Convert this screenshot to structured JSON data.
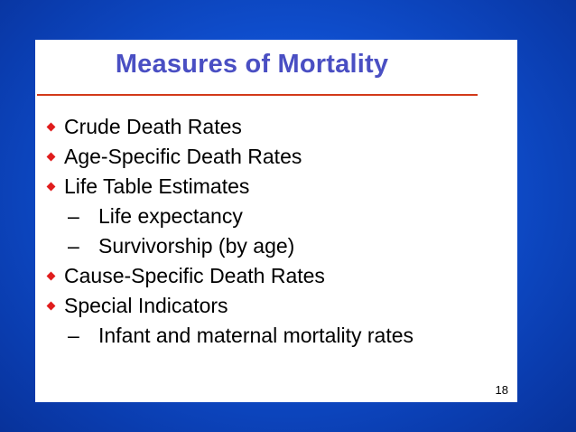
{
  "slide": {
    "title": "Measures of Mortality",
    "items": [
      {
        "level": 1,
        "text": "Crude Death Rates"
      },
      {
        "level": 1,
        "text": "Age-Specific Death Rates"
      },
      {
        "level": 1,
        "text": "Life Table Estimates"
      },
      {
        "level": 2,
        "dash": "–",
        "text": "Life expectancy"
      },
      {
        "level": 2,
        "dash": "–",
        "text": "Survivorship (by age)"
      },
      {
        "level": 1,
        "text": "Cause-Specific Death Rates"
      },
      {
        "level": 1,
        "text": "Special Indicators"
      },
      {
        "level": 2,
        "dash": "–",
        "text": "Infant and maternal mortality rates"
      }
    ],
    "page_number": "18"
  },
  "colors": {
    "title": "#4a4fc3",
    "rule": "#d23a1a",
    "bullet": "#e01d1d",
    "background": "#0f4fcf"
  }
}
